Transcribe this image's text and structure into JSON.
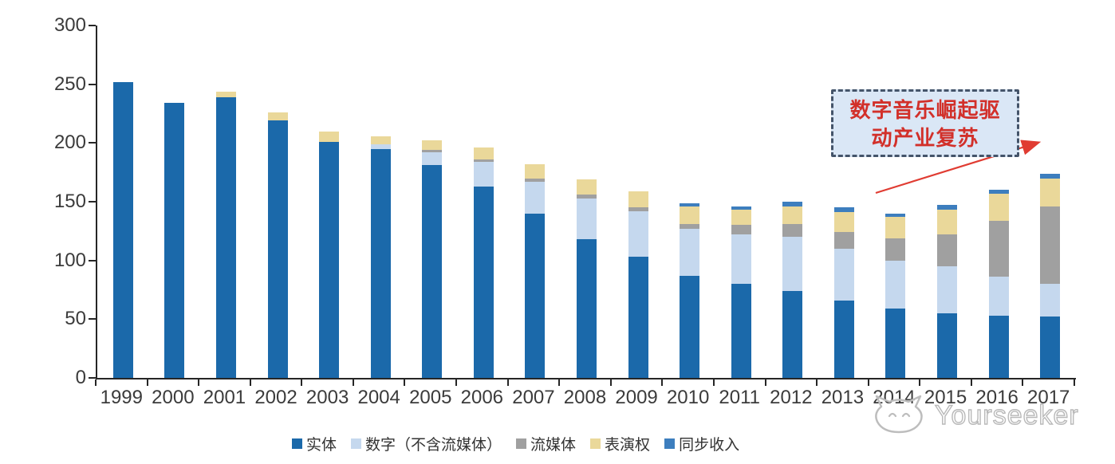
{
  "chart_data": {
    "type": "bar",
    "stacked": true,
    "title": "",
    "xlabel": "",
    "ylabel": "",
    "categories": [
      "1999",
      "2000",
      "2001",
      "2002",
      "2003",
      "2004",
      "2005",
      "2006",
      "2007",
      "2008",
      "2009",
      "2010",
      "2011",
      "2012",
      "2013",
      "2014",
      "2015",
      "2016",
      "2017"
    ],
    "series": [
      {
        "name": "实体",
        "color": "#1B69AA",
        "values": [
          252,
          234,
          239,
          219,
          201,
          195,
          181,
          163,
          140,
          118,
          103,
          87,
          80,
          74,
          66,
          59,
          55,
          53,
          52
        ]
      },
      {
        "name": "数字（不含流媒体）",
        "color": "#C5D8EE",
        "values": [
          0,
          0,
          0,
          0,
          0,
          4,
          11,
          21,
          27,
          35,
          39,
          40,
          42,
          46,
          44,
          41,
          40,
          33,
          28
        ]
      },
      {
        "name": "流媒体",
        "color": "#A0A0A0",
        "values": [
          0,
          0,
          0,
          0,
          0,
          0,
          2,
          2,
          3,
          3,
          3,
          4,
          8,
          11,
          14,
          19,
          27,
          48,
          66
        ]
      },
      {
        "name": "表演权",
        "color": "#EAD89A",
        "values": [
          0,
          0,
          5,
          7,
          9,
          7,
          8,
          10,
          12,
          13,
          14,
          15,
          13,
          15,
          17,
          18,
          21,
          23,
          24
        ]
      },
      {
        "name": "同步收入",
        "color": "#3D7EBE",
        "values": [
          0,
          0,
          0,
          0,
          0,
          0,
          0,
          0,
          0,
          0,
          0,
          3,
          3,
          4,
          4,
          3,
          4,
          3,
          4
        ]
      }
    ],
    "ylim": [
      0,
      300
    ],
    "yticks": [
      0,
      50,
      100,
      150,
      200,
      250,
      300
    ],
    "grid": false,
    "legend_position": "bottom",
    "axis_color": "#262626",
    "tick_label_color": "#3b3b3b"
  },
  "annotation": {
    "line1": "数字音乐崛起驱",
    "line2": "动产业复苏",
    "box_fill": "#DAE7F6",
    "border_color": "#44546A",
    "text_color": "#D2302A",
    "arrow_color": "#E03C32"
  },
  "watermark": {
    "text": "Yourseeker",
    "logo": "cat-logo",
    "color": "#b9b9b9"
  }
}
